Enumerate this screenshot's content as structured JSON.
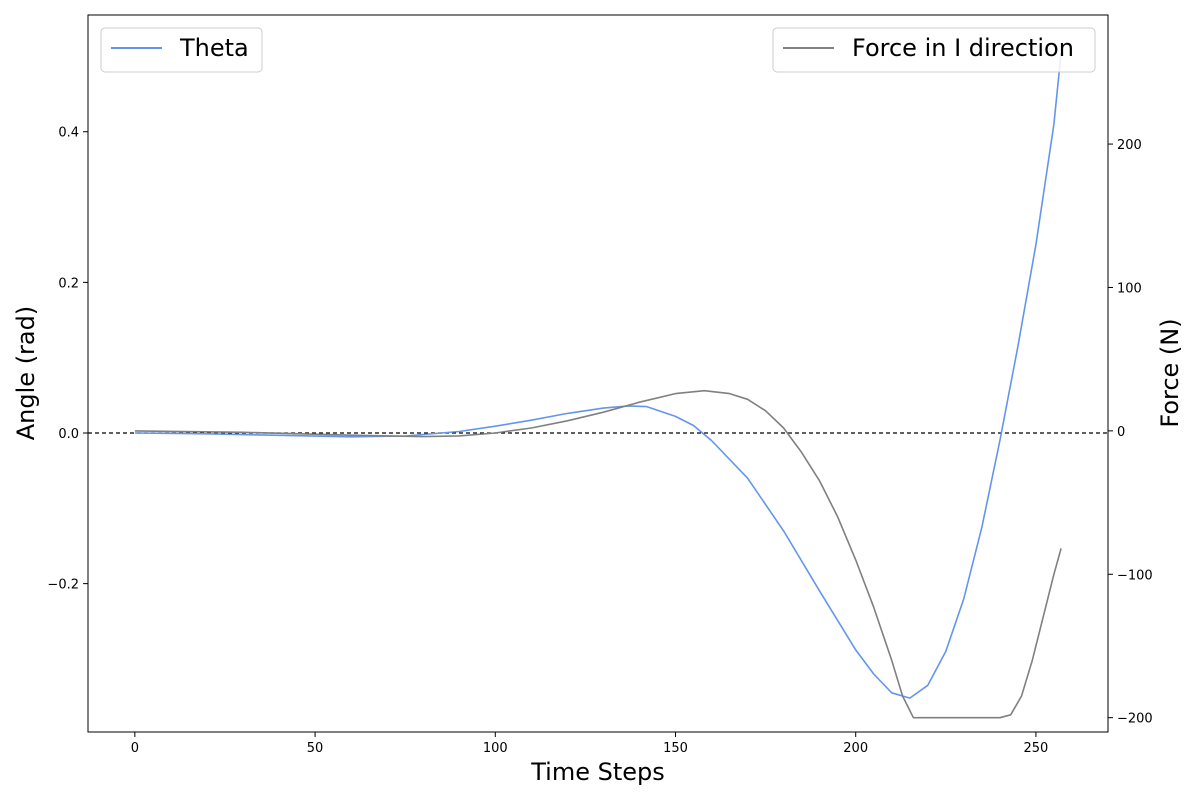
{
  "chart_data": {
    "type": "line",
    "xlabel": "Time Steps",
    "ylabel_left": "Angle (rad)",
    "ylabel_right": "Force (N)",
    "xlim": [
      -13,
      270
    ],
    "ylim_left": [
      -0.397,
      0.555
    ],
    "ylim_right": [
      -210,
      290
    ],
    "x_ticks": [
      0,
      50,
      100,
      150,
      200,
      250
    ],
    "y_left_ticks": [
      {
        "value": -0.2,
        "label": "−0.2"
      },
      {
        "value": 0.0,
        "label": "0.0"
      },
      {
        "value": 0.2,
        "label": "0.2"
      },
      {
        "value": 0.4,
        "label": "0.4"
      }
    ],
    "y_right_ticks": [
      {
        "value": -200,
        "label": "−200"
      },
      {
        "value": -100,
        "label": "−100"
      },
      {
        "value": 0,
        "label": "0"
      },
      {
        "value": 100,
        "label": "100"
      },
      {
        "value": 200,
        "label": "200"
      }
    ],
    "reference_line": {
      "y": 0,
      "style": "dashed",
      "color": "#000000"
    },
    "series": [
      {
        "name": "Theta",
        "axis": "left",
        "color": "#6495ED",
        "legend_position": "upper-left",
        "points": [
          [
            0,
            0.0
          ],
          [
            20,
            -0.001
          ],
          [
            40,
            -0.003
          ],
          [
            60,
            -0.005
          ],
          [
            75,
            -0.004
          ],
          [
            90,
            0.002
          ],
          [
            100,
            0.009
          ],
          [
            110,
            0.017
          ],
          [
            120,
            0.026
          ],
          [
            130,
            0.033
          ],
          [
            137,
            0.036
          ],
          [
            142,
            0.035
          ],
          [
            150,
            0.022
          ],
          [
            155,
            0.01
          ],
          [
            160,
            -0.01
          ],
          [
            170,
            -0.06
          ],
          [
            180,
            -0.13
          ],
          [
            190,
            -0.21
          ],
          [
            200,
            -0.288
          ],
          [
            205,
            -0.32
          ],
          [
            210,
            -0.345
          ],
          [
            215,
            -0.352
          ],
          [
            220,
            -0.335
          ],
          [
            225,
            -0.29
          ],
          [
            230,
            -0.22
          ],
          [
            235,
            -0.125
          ],
          [
            240,
            -0.01
          ],
          [
            245,
            0.115
          ],
          [
            250,
            0.25
          ],
          [
            255,
            0.41
          ],
          [
            257,
            0.505
          ]
        ]
      },
      {
        "name": "Force in I direction",
        "axis": "right",
        "color": "#808080",
        "legend_position": "upper-right",
        "points": [
          [
            0,
            0
          ],
          [
            30,
            -1
          ],
          [
            60,
            -3
          ],
          [
            80,
            -4
          ],
          [
            90,
            -3.5
          ],
          [
            100,
            -1.5
          ],
          [
            110,
            2
          ],
          [
            120,
            7
          ],
          [
            130,
            13
          ],
          [
            140,
            20
          ],
          [
            150,
            26
          ],
          [
            158,
            28
          ],
          [
            165,
            26
          ],
          [
            170,
            22
          ],
          [
            175,
            14
          ],
          [
            180,
            2
          ],
          [
            185,
            -15
          ],
          [
            190,
            -35
          ],
          [
            195,
            -60
          ],
          [
            200,
            -90
          ],
          [
            205,
            -123
          ],
          [
            210,
            -160
          ],
          [
            213,
            -185
          ],
          [
            216,
            -200
          ],
          [
            220,
            -200
          ],
          [
            230,
            -200
          ],
          [
            240,
            -200
          ],
          [
            243,
            -198
          ],
          [
            246,
            -185
          ],
          [
            249,
            -160
          ],
          [
            252,
            -130
          ],
          [
            255,
            -100
          ],
          [
            257,
            -82
          ]
        ]
      }
    ]
  }
}
